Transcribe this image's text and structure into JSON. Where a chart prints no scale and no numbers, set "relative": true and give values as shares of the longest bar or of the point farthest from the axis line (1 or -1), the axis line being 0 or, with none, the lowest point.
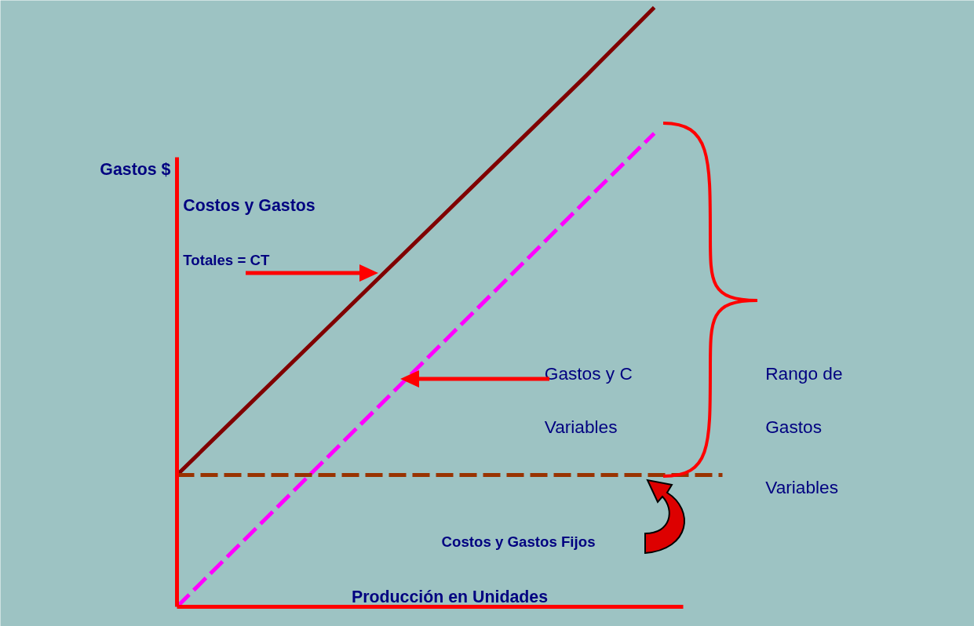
{
  "chart_data": {
    "type": "line",
    "xlabel": "Producción en Unidades",
    "ylabel": "Gastos $",
    "categories": [
      null,
      null,
      null,
      null,
      null,
      null,
      null,
      null,
      null
    ],
    "series": [
      {
        "color": "#800000",
        "line_style": "solid",
        "values": [
          0.22,
          0.331,
          0.442,
          0.553,
          0.664,
          0.775,
          0.886,
          1,
          null
        ]
      },
      {
        "color": "#ff00ff",
        "line_style": "dashed",
        "values": [
          0,
          0.113,
          0.226,
          0.339,
          0.452,
          0.565,
          0.678,
          0.79,
          null
        ]
      },
      {
        "color": "#993300",
        "line_style": "dashed",
        "values": [
          0.22,
          0.22,
          0.22,
          0.22,
          0.22,
          0.22,
          0.22,
          0.22,
          0.22
        ]
      }
    ],
    "annotations": [
      "Costos y Gastos",
      "Totales = CT",
      "Gastos y C",
      "Variables",
      "Rango de",
      "Gastos",
      "Variables",
      "Costos  y Gastos Fijos"
    ],
    "relative": true
  }
}
